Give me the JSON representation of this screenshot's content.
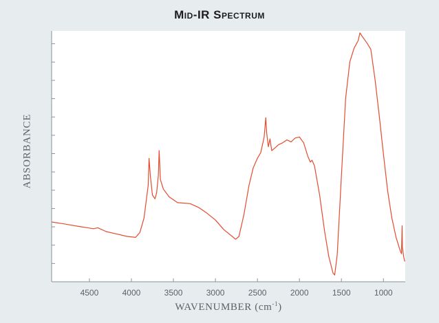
{
  "colors": {
    "background": "#e7ecef",
    "plot_area": "#ffffff",
    "spectrum_line": "#e34b2e",
    "axis": "#8a9298",
    "text": "#5a6268"
  },
  "chart_data": {
    "type": "line",
    "title": "Mid-IR Spectrum",
    "xlabel_main": "WAVENUMBER (cm",
    "xlabel_sup": "-1",
    "xlabel_close": ")",
    "ylabel": "ABSORBANCE",
    "x_reversed": true,
    "xlim": [
      4950,
      740
    ],
    "ylim": [
      0,
      13
    ],
    "y_ticks_count": 13,
    "y_tick_labels_shown": false,
    "grid": false,
    "xticks": [
      "4500",
      "4000",
      "3500",
      "3000",
      "2500",
      "2000",
      "1500",
      "1000"
    ],
    "xtick_values": [
      4500,
      4000,
      3500,
      3000,
      2500,
      2000,
      1500,
      1000
    ],
    "series": [
      {
        "values": [
          [
            4950,
            3.1
          ],
          [
            4800,
            3.0
          ],
          [
            4600,
            2.85
          ],
          [
            4450,
            2.75
          ],
          [
            4400,
            2.8
          ],
          [
            4300,
            2.6
          ],
          [
            4200,
            2.5
          ],
          [
            4050,
            2.35
          ],
          [
            3950,
            2.3
          ],
          [
            3900,
            2.55
          ],
          [
            3850,
            3.3
          ],
          [
            3800,
            5.0
          ],
          [
            3790,
            6.4
          ],
          [
            3775,
            5.5
          ],
          [
            3750,
            4.5
          ],
          [
            3720,
            4.3
          ],
          [
            3700,
            4.6
          ],
          [
            3680,
            5.5
          ],
          [
            3670,
            6.8
          ],
          [
            3655,
            5.3
          ],
          [
            3620,
            4.8
          ],
          [
            3550,
            4.4
          ],
          [
            3450,
            4.1
          ],
          [
            3300,
            4.05
          ],
          [
            3200,
            3.85
          ],
          [
            3100,
            3.55
          ],
          [
            3000,
            3.2
          ],
          [
            2900,
            2.7
          ],
          [
            2800,
            2.35
          ],
          [
            2760,
            2.2
          ],
          [
            2720,
            2.35
          ],
          [
            2660,
            3.5
          ],
          [
            2600,
            5.0
          ],
          [
            2550,
            5.9
          ],
          [
            2500,
            6.4
          ],
          [
            2460,
            6.7
          ],
          [
            2420,
            7.5
          ],
          [
            2400,
            8.5
          ],
          [
            2390,
            7.7
          ],
          [
            2370,
            7.0
          ],
          [
            2350,
            7.4
          ],
          [
            2330,
            6.8
          ],
          [
            2300,
            6.9
          ],
          [
            2250,
            7.1
          ],
          [
            2200,
            7.2
          ],
          [
            2150,
            7.35
          ],
          [
            2100,
            7.25
          ],
          [
            2050,
            7.45
          ],
          [
            2000,
            7.5
          ],
          [
            1950,
            7.2
          ],
          [
            1900,
            6.5
          ],
          [
            1870,
            6.2
          ],
          [
            1850,
            6.3
          ],
          [
            1820,
            6.0
          ],
          [
            1760,
            4.5
          ],
          [
            1700,
            2.6
          ],
          [
            1650,
            1.3
          ],
          [
            1600,
            0.45
          ],
          [
            1580,
            0.35
          ],
          [
            1550,
            1.4
          ],
          [
            1500,
            5.5
          ],
          [
            1450,
            9.5
          ],
          [
            1400,
            11.4
          ],
          [
            1350,
            12.1
          ],
          [
            1300,
            12.5
          ],
          [
            1280,
            12.9
          ],
          [
            1250,
            12.7
          ],
          [
            1200,
            12.4
          ],
          [
            1150,
            12.05
          ],
          [
            1100,
            10.5
          ],
          [
            1050,
            8.6
          ],
          [
            1000,
            6.6
          ],
          [
            950,
            4.7
          ],
          [
            900,
            3.3
          ],
          [
            850,
            2.3
          ],
          [
            800,
            1.6
          ],
          [
            785,
            1.45
          ],
          [
            778,
            2.9
          ],
          [
            774,
            1.8
          ],
          [
            760,
            1.3
          ],
          [
            745,
            1.05
          ]
        ]
      }
    ]
  }
}
